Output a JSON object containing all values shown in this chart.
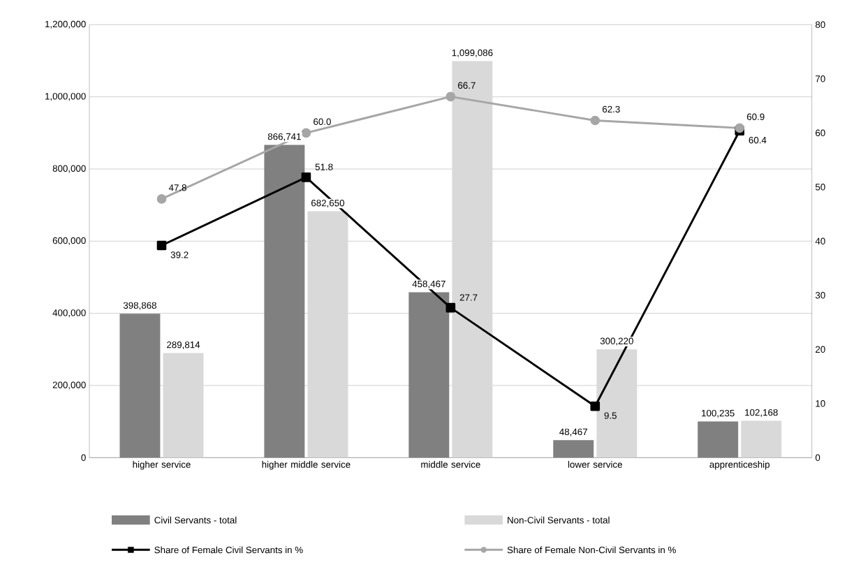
{
  "chart_data": {
    "type": "bar",
    "categories": [
      "higher service",
      "higher middle service",
      "middle service",
      "lower service",
      "apprenticeship"
    ],
    "ylim": [
      0,
      1200000
    ],
    "yticks": [
      0,
      {
        "value": 200000,
        "label": "200,000"
      },
      {
        "value": 400000,
        "label": "400,000"
      },
      {
        "value": 600000,
        "label": "600,000"
      },
      {
        "value": 800000,
        "label": "800,000"
      },
      {
        "value": 1000000,
        "label": "1,000,000"
      },
      {
        "value": 1200000,
        "label": "1,200,000"
      }
    ],
    "y2lim": [
      0,
      80
    ],
    "y2ticks": [
      0,
      10,
      20,
      30,
      40,
      50,
      60,
      70,
      80
    ],
    "grid": "y",
    "legend": "bottom",
    "series": [
      {
        "name": "Civil Servants - total",
        "color": "#808080",
        "values": [
          398868,
          866741,
          458467,
          48467,
          100235
        ],
        "value_labels": [
          "398,868",
          "866,741",
          "458,467",
          "48,467",
          "100,235"
        ]
      },
      {
        "name": "Non-Civil Servants - total",
        "color": "#d9d9d9",
        "values": [
          289814,
          682650,
          1099086,
          300220,
          102168
        ],
        "value_labels": [
          "289,814",
          "682,650",
          "1,099,086",
          "300,220",
          "102,168"
        ]
      },
      {
        "name": "Share of Female Civil Servants in %",
        "type": "line",
        "axis": "y2",
        "marker": "square",
        "color": "#000000",
        "values": [
          39.2,
          51.8,
          27.7,
          9.5,
          60.4
        ],
        "value_labels": [
          "39.2",
          "51.8",
          "27.7",
          "9.5",
          "60.4"
        ]
      },
      {
        "name": "Share of Female Non-Civil Servants in %",
        "type": "line",
        "axis": "y2",
        "marker": "circle",
        "color": "#a6a6a6",
        "values": [
          47.8,
          60.0,
          66.7,
          62.3,
          60.9
        ],
        "value_labels": [
          "47.8",
          "60.0",
          "66.7",
          "62.3",
          "60.9"
        ]
      }
    ]
  }
}
